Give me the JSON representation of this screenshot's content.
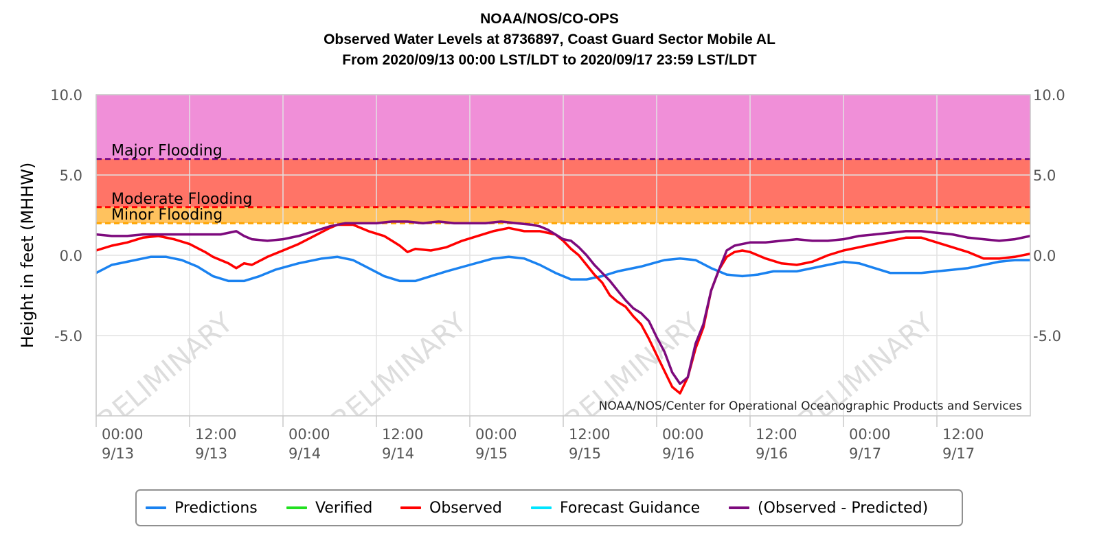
{
  "title_lines": [
    "NOAA/NOS/CO-OPS",
    "Observed Water Levels at 8736897, Coast Guard Sector Mobile AL",
    "From 2020/09/13 00:00 LST/LDT to 2020/09/17 23:59 LST/LDT"
  ],
  "chart_data": {
    "type": "line",
    "ylabel": "Height in feet (MHHW)",
    "ylim": [
      -10,
      10
    ],
    "yticks": [
      "10.0",
      "5.0",
      "0.0",
      "-5.0"
    ],
    "xlim": [
      "2020-09-13 00:00",
      "2020-09-17 23:59"
    ],
    "xticks": [
      {
        "time": "00:00",
        "date": "9/13"
      },
      {
        "time": "12:00",
        "date": "9/13"
      },
      {
        "time": "00:00",
        "date": "9/14"
      },
      {
        "time": "12:00",
        "date": "9/14"
      },
      {
        "time": "00:00",
        "date": "9/15"
      },
      {
        "time": "12:00",
        "date": "9/15"
      },
      {
        "time": "00:00",
        "date": "9/16"
      },
      {
        "time": "12:00",
        "date": "9/16"
      },
      {
        "time": "00:00",
        "date": "9/17"
      },
      {
        "time": "12:00",
        "date": "9/17"
      }
    ],
    "grid": true,
    "legend_position": "bottom-center",
    "flood_thresholds": [
      {
        "label": "Major Flooding",
        "value": 6.0,
        "color": "#7b0e88",
        "band_color": "#f08fd8"
      },
      {
        "label": "Moderate Flooding",
        "value": 3.0,
        "color": "#ff0000",
        "band_color": "#ff7467"
      },
      {
        "label": "Minor Flooding",
        "value": 2.0,
        "color": "#ffa500",
        "band_color": "#ffc25e"
      }
    ],
    "watermark": "PRELIMINARY",
    "credit": "NOAA/NOS/Center for Operational Oceanographic Products and Services",
    "series": [
      {
        "name": "Predictions",
        "color": "#1a82f0",
        "points": [
          [
            0,
            -1.1
          ],
          [
            2,
            -0.6
          ],
          [
            4,
            -0.4
          ],
          [
            7,
            -0.1
          ],
          [
            9,
            -0.1
          ],
          [
            11,
            -0.3
          ],
          [
            13,
            -0.7
          ],
          [
            15,
            -1.3
          ],
          [
            17,
            -1.6
          ],
          [
            19,
            -1.6
          ],
          [
            21,
            -1.3
          ],
          [
            23,
            -0.9
          ],
          [
            26,
            -0.5
          ],
          [
            29,
            -0.2
          ],
          [
            31,
            -0.1
          ],
          [
            33,
            -0.3
          ],
          [
            35,
            -0.8
          ],
          [
            37,
            -1.3
          ],
          [
            39,
            -1.6
          ],
          [
            41,
            -1.6
          ],
          [
            43,
            -1.3
          ],
          [
            45,
            -1.0
          ],
          [
            48,
            -0.6
          ],
          [
            51,
            -0.2
          ],
          [
            53,
            -0.1
          ],
          [
            55,
            -0.2
          ],
          [
            57,
            -0.6
          ],
          [
            59,
            -1.1
          ],
          [
            61,
            -1.5
          ],
          [
            63,
            -1.5
          ],
          [
            65,
            -1.3
          ],
          [
            67,
            -1.0
          ],
          [
            70,
            -0.7
          ],
          [
            73,
            -0.3
          ],
          [
            75,
            -0.2
          ],
          [
            77,
            -0.3
          ],
          [
            79,
            -0.8
          ],
          [
            81,
            -1.2
          ],
          [
            83,
            -1.3
          ],
          [
            85,
            -1.2
          ],
          [
            87,
            -1.0
          ],
          [
            90,
            -1.0
          ],
          [
            93,
            -0.7
          ],
          [
            96,
            -0.4
          ],
          [
            98,
            -0.5
          ],
          [
            100,
            -0.8
          ],
          [
            102,
            -1.1
          ],
          [
            104,
            -1.1
          ],
          [
            106,
            -1.1
          ],
          [
            108,
            -1.0
          ],
          [
            110,
            -0.9
          ],
          [
            112,
            -0.8
          ],
          [
            114,
            -0.6
          ],
          [
            116,
            -0.4
          ],
          [
            118,
            -0.3
          ],
          [
            120,
            -0.3
          ]
        ]
      },
      {
        "name": "Verified",
        "color": "#22e020",
        "points": []
      },
      {
        "name": "Observed",
        "color": "#ff0000",
        "points": [
          [
            0,
            0.3
          ],
          [
            2,
            0.6
          ],
          [
            4,
            0.8
          ],
          [
            6,
            1.1
          ],
          [
            8,
            1.2
          ],
          [
            10,
            1.0
          ],
          [
            12,
            0.7
          ],
          [
            14,
            0.2
          ],
          [
            15,
            -0.1
          ],
          [
            16,
            -0.3
          ],
          [
            17,
            -0.5
          ],
          [
            18,
            -0.8
          ],
          [
            19,
            -0.5
          ],
          [
            20,
            -0.6
          ],
          [
            22,
            -0.1
          ],
          [
            24,
            0.3
          ],
          [
            26,
            0.7
          ],
          [
            28,
            1.2
          ],
          [
            30,
            1.7
          ],
          [
            31,
            1.9
          ],
          [
            33,
            1.9
          ],
          [
            35,
            1.5
          ],
          [
            37,
            1.2
          ],
          [
            38,
            0.9
          ],
          [
            39,
            0.6
          ],
          [
            40,
            0.2
          ],
          [
            41,
            0.4
          ],
          [
            43,
            0.3
          ],
          [
            45,
            0.5
          ],
          [
            47,
            0.9
          ],
          [
            49,
            1.2
          ],
          [
            51,
            1.5
          ],
          [
            53,
            1.7
          ],
          [
            55,
            1.5
          ],
          [
            57,
            1.5
          ],
          [
            59,
            1.3
          ],
          [
            60,
            0.9
          ],
          [
            61,
            0.4
          ],
          [
            62,
            0.0
          ],
          [
            63,
            -0.6
          ],
          [
            64,
            -1.2
          ],
          [
            65,
            -1.7
          ],
          [
            66,
            -2.5
          ],
          [
            67,
            -2.9
          ],
          [
            68,
            -3.2
          ],
          [
            69,
            -3.8
          ],
          [
            70,
            -4.3
          ],
          [
            71,
            -5.2
          ],
          [
            72,
            -6.2
          ],
          [
            73,
            -7.2
          ],
          [
            74,
            -8.2
          ],
          [
            75,
            -8.6
          ],
          [
            76,
            -7.6
          ],
          [
            77,
            -5.8
          ],
          [
            78,
            -4.5
          ],
          [
            79,
            -2.2
          ],
          [
            80,
            -0.9
          ],
          [
            81,
            -0.1
          ],
          [
            82,
            0.2
          ],
          [
            83,
            0.3
          ],
          [
            84,
            0.2
          ],
          [
            86,
            -0.2
          ],
          [
            88,
            -0.5
          ],
          [
            90,
            -0.6
          ],
          [
            92,
            -0.4
          ],
          [
            94,
            0.0
          ],
          [
            96,
            0.3
          ],
          [
            98,
            0.5
          ],
          [
            100,
            0.7
          ],
          [
            102,
            0.9
          ],
          [
            104,
            1.1
          ],
          [
            106,
            1.1
          ],
          [
            108,
            0.8
          ],
          [
            110,
            0.5
          ],
          [
            112,
            0.2
          ],
          [
            114,
            -0.2
          ],
          [
            116,
            -0.2
          ],
          [
            118,
            -0.1
          ],
          [
            120,
            0.1
          ]
        ]
      },
      {
        "name": "Forecast Guidance",
        "color": "#00e5ff",
        "points": []
      },
      {
        "name": "(Observed - Predicted)",
        "color": "#7d0a7d",
        "points": [
          [
            0,
            1.3
          ],
          [
            2,
            1.2
          ],
          [
            4,
            1.2
          ],
          [
            6,
            1.3
          ],
          [
            8,
            1.3
          ],
          [
            10,
            1.3
          ],
          [
            12,
            1.3
          ],
          [
            14,
            1.3
          ],
          [
            16,
            1.3
          ],
          [
            18,
            1.5
          ],
          [
            19,
            1.2
          ],
          [
            20,
            1.0
          ],
          [
            22,
            0.9
          ],
          [
            24,
            1.0
          ],
          [
            26,
            1.2
          ],
          [
            28,
            1.5
          ],
          [
            30,
            1.8
          ],
          [
            32,
            2.0
          ],
          [
            34,
            2.0
          ],
          [
            36,
            2.0
          ],
          [
            38,
            2.1
          ],
          [
            40,
            2.1
          ],
          [
            42,
            2.0
          ],
          [
            44,
            2.1
          ],
          [
            46,
            2.0
          ],
          [
            48,
            2.0
          ],
          [
            50,
            2.0
          ],
          [
            52,
            2.1
          ],
          [
            54,
            2.0
          ],
          [
            56,
            1.9
          ],
          [
            57,
            1.8
          ],
          [
            58,
            1.6
          ],
          [
            59,
            1.3
          ],
          [
            60,
            1.0
          ],
          [
            61,
            0.9
          ],
          [
            62,
            0.5
          ],
          [
            63,
            0.0
          ],
          [
            64,
            -0.6
          ],
          [
            65,
            -1.1
          ],
          [
            66,
            -1.6
          ],
          [
            67,
            -2.2
          ],
          [
            68,
            -2.8
          ],
          [
            69,
            -3.3
          ],
          [
            70,
            -3.6
          ],
          [
            71,
            -4.1
          ],
          [
            72,
            -5.1
          ],
          [
            73,
            -6.0
          ],
          [
            74,
            -7.3
          ],
          [
            75,
            -8.0
          ],
          [
            76,
            -7.6
          ],
          [
            77,
            -5.5
          ],
          [
            78,
            -4.3
          ],
          [
            79,
            -2.2
          ],
          [
            80,
            -0.9
          ],
          [
            81,
            0.3
          ],
          [
            82,
            0.6
          ],
          [
            83,
            0.7
          ],
          [
            84,
            0.8
          ],
          [
            86,
            0.8
          ],
          [
            88,
            0.9
          ],
          [
            90,
            1.0
          ],
          [
            92,
            0.9
          ],
          [
            94,
            0.9
          ],
          [
            96,
            1.0
          ],
          [
            98,
            1.2
          ],
          [
            100,
            1.3
          ],
          [
            102,
            1.4
          ],
          [
            104,
            1.5
          ],
          [
            106,
            1.5
          ],
          [
            108,
            1.4
          ],
          [
            110,
            1.3
          ],
          [
            112,
            1.1
          ],
          [
            114,
            1.0
          ],
          [
            116,
            0.9
          ],
          [
            118,
            1.0
          ],
          [
            120,
            1.2
          ]
        ]
      }
    ]
  }
}
